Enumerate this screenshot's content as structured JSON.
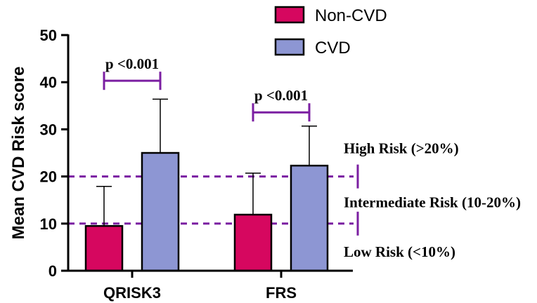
{
  "chart_data": {
    "type": "bar",
    "ylabel": "Mean CVD Risk score",
    "ylim": [
      0,
      50
    ],
    "yticks": [
      0,
      10,
      20,
      30,
      40,
      50
    ],
    "categories": [
      "QRISK3",
      "FRS"
    ],
    "series": [
      {
        "name": "Non-CVD",
        "color": "#d6075f",
        "values": [
          9.5,
          11.9
        ],
        "error": [
          8.4,
          8.8
        ]
      },
      {
        "name": "CVD",
        "color": "#8d96d3",
        "values": [
          25.0,
          22.3
        ],
        "error": [
          11.4,
          8.4
        ]
      }
    ],
    "legend_position": "top",
    "reference_lines": [
      {
        "y": 10,
        "style": "dashed",
        "color": "#7b1fa2"
      },
      {
        "y": 20,
        "style": "dashed",
        "color": "#7b1fa2"
      }
    ],
    "risk_bands": [
      {
        "label": "High Risk (>20%)",
        "level": 26.0
      },
      {
        "label": "Intermediate Risk (10-20%)",
        "level": 14.5
      },
      {
        "label": "Low Risk (<10%)",
        "level": 4.0
      }
    ],
    "significance": [
      {
        "category": "QRISK3",
        "label": "p <0.001",
        "level": 40.3
      },
      {
        "category": "FRS",
        "label": "p <0.001",
        "level": 33.6
      }
    ]
  }
}
